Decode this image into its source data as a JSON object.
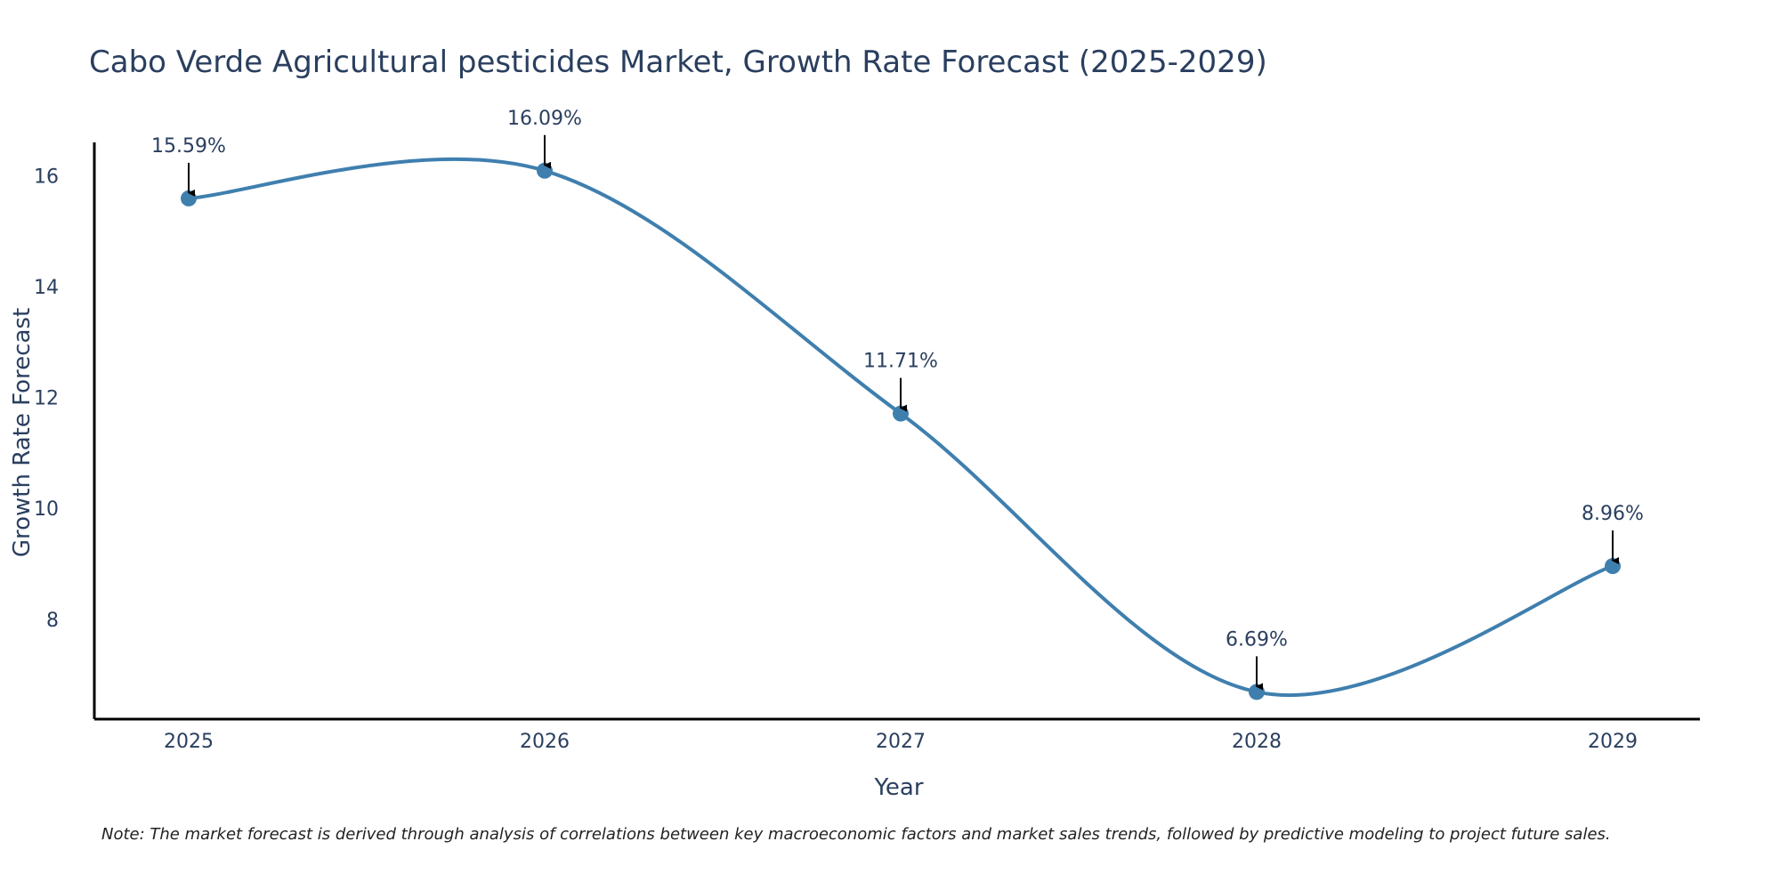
{
  "chart_data": {
    "type": "line",
    "title": "Cabo Verde Agricultural pesticides Market, Growth Rate Forecast (2025-2029)",
    "xlabel": "Year",
    "ylabel": "Growth Rate Forecast",
    "x": [
      "2025",
      "2026",
      "2027",
      "2028",
      "2029"
    ],
    "values": [
      15.59,
      16.09,
      11.71,
      6.69,
      8.96
    ],
    "data_labels": [
      "15.59%",
      "16.09%",
      "11.71%",
      "6.69%",
      "8.96%"
    ],
    "yticks": [
      "8",
      "10",
      "12",
      "14",
      "16"
    ],
    "ylim": [
      6.2,
      16.6
    ],
    "grid": false,
    "line_color": "#3f7fae",
    "marker_color": "#3f7fae",
    "arrow_color": "#000000",
    "note": "Note: The market forecast is derived through analysis of correlations between key macroeconomic factors and market sales trends, followed by predictive modeling to project future sales."
  }
}
